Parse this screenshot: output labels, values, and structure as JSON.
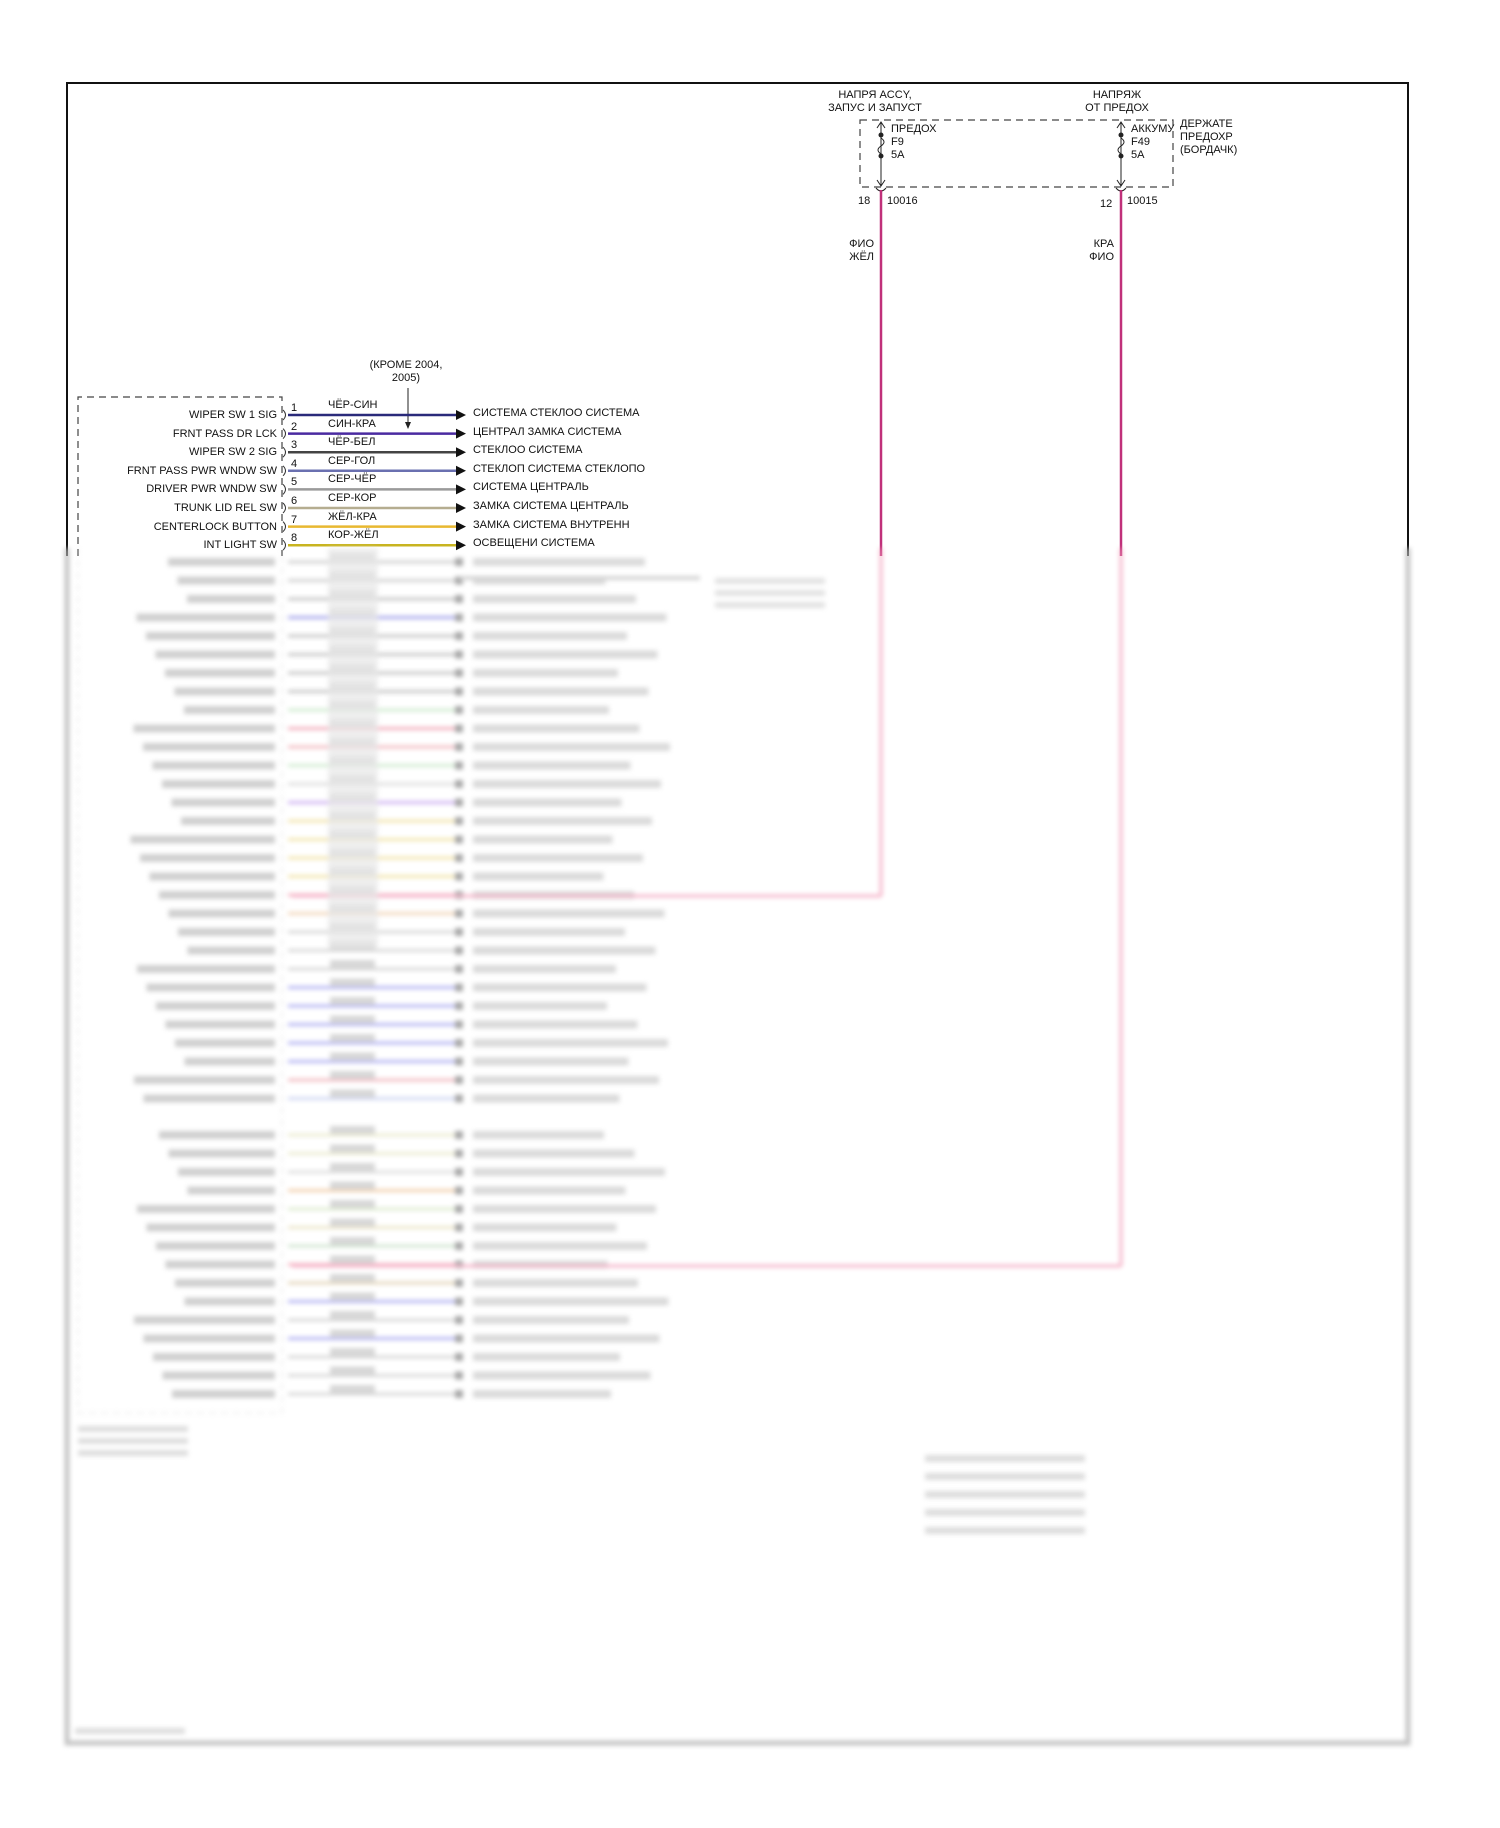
{
  "fuses": [
    {
      "source_label": [
        "НАПРЯ ACCY,",
        "ЗАПУС И ЗАПУСТ"
      ],
      "name": "ПРЕДОХ",
      "id": "F9",
      "rating": "5A",
      "pin": "18",
      "circuit": "10016",
      "wire_color": [
        "ФИО",
        "ЖЁЛ"
      ],
      "color": "#c0307a"
    },
    {
      "source_label": [
        "НАПРЯЖ",
        "ОТ ПРЕДОХ"
      ],
      "name": "АККУМУ",
      "id": "F49",
      "rating": "5A",
      "pin": "12",
      "circuit": "10015",
      "wire_color": [
        "КРА",
        "ФИО"
      ],
      "color": "#c0307a"
    }
  ],
  "fuse_box_label": [
    "ДЕРЖАТЕ",
    "ПРЕДОХР",
    "(БОРДАЧК)"
  ],
  "note": [
    "(КРОМЕ 2004,",
    "2005)"
  ],
  "wires": [
    {
      "pin": "1",
      "signal": "WIPER SW 1 SIG",
      "color_code": "ЧЁР-СИН",
      "destination": "СИСТЕМА СТЕКЛОО СИСТЕМА",
      "color": "#2a2a7a"
    },
    {
      "pin": "2",
      "signal": "FRNT PASS DR LCK",
      "color_code": "СИН-КРА",
      "destination": "ЦЕНТРАЛ ЗАМКА СИСТЕМА",
      "color": "#4a2aa0"
    },
    {
      "pin": "3",
      "signal": "WIPER SW 2 SIG",
      "color_code": "ЧЁР-БЕЛ",
      "destination": "СТЕКЛОО СИСТЕМА",
      "color": "#444444"
    },
    {
      "pin": "4",
      "signal": "FRNT PASS PWR WNDW SW",
      "color_code": "СЕР-ГОЛ",
      "destination": "СТЕКЛОП СИСТЕМА СТЕКЛОПО",
      "color": "#6a70b0"
    },
    {
      "pin": "5",
      "signal": "DRIVER PWR WNDW SW",
      "color_code": "СЕР-ЧЁР",
      "destination": "СИСТЕМА ЦЕНТРАЛЬ",
      "color": "#9a9a9a"
    },
    {
      "pin": "6",
      "signal": "TRUNK LID REL SW",
      "color_code": "СЕР-КОР",
      "destination": "ЗАМКА СИСТЕМА ЦЕНТРАЛЬ",
      "color": "#b5ad90"
    },
    {
      "pin": "7",
      "signal": "CENTERLOCK BUTTON",
      "color_code": "ЖЁЛ-КРА",
      "destination": "ЗАМКА СИСТЕМА ВНУТРЕНН",
      "color": "#e8b830"
    },
    {
      "pin": "8",
      "signal": "INT LIGHT SW",
      "color_code": "КОР-ЖЁЛ",
      "destination": "ОСВЕЩЕНИ СИСТЕМА",
      "color": "#c8b420"
    }
  ],
  "blurred_wire_colors": [
    "#c8c8c8",
    "#c8c8c8",
    "#bbbbbb",
    "#9a9ae8",
    "#bbbbbb",
    "#bbbbbb",
    "#bbbbbb",
    "#bbbbbb",
    "#c8e8c8",
    "#f0a0b0",
    "#f0b0b8",
    "#c8e8c8",
    "#d8d8d8",
    "#c8a8f0",
    "#f0e0a0",
    "#f0e0a0",
    "#f0e0a0",
    "#f0e0a0",
    "#f4a8b8",
    "#f0d0b0",
    "#d0d0d0",
    "#d0d0d0",
    "#d0d0d0",
    "#a8a8f0",
    "#a8a8f0",
    "#a8a8f0",
    "#a8a8f0",
    "#a8a8f0",
    "#f0b0b8",
    "#c8d0f0"
  ],
  "blurred_wire_colors_2": [
    "#e8e8c8",
    "#e8e8c8",
    "#d8d8d8",
    "#f0c8a0",
    "#d8e8c8",
    "#e8e0c0",
    "#c8e0c8",
    "#f4a8b8",
    "#e0d0b0",
    "#a8a8f0",
    "#d0d0d0",
    "#a8a8f0",
    "#d0d0d0",
    "#d0d0d0",
    "#d0d0d0"
  ],
  "pink_wire_color": "#f4a8c0"
}
